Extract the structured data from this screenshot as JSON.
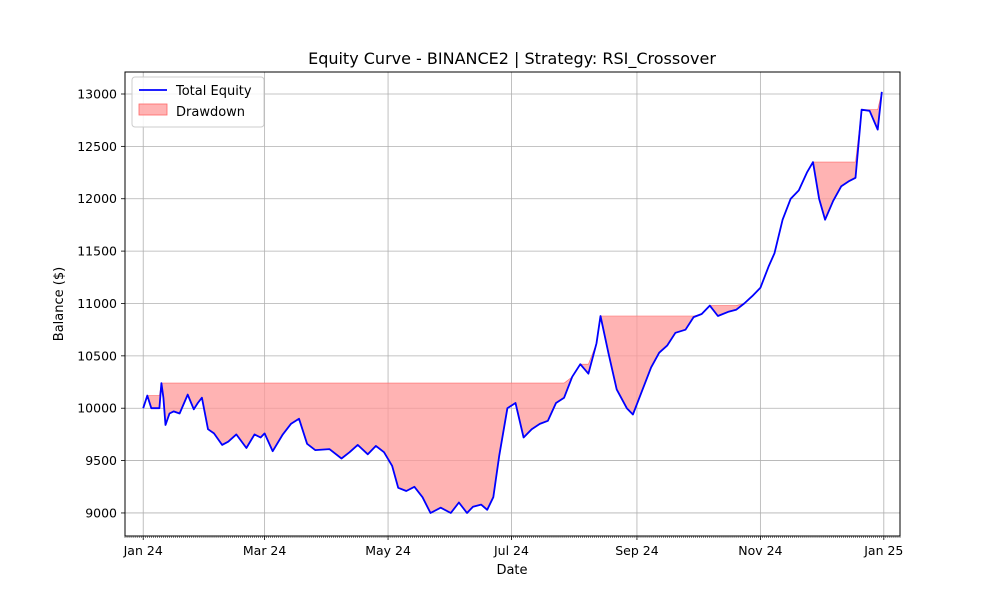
{
  "chart_data": {
    "type": "line",
    "title": "Equity Curve - BINANCE2 | Strategy: RSI_Crossover",
    "xlabel": "Date",
    "ylabel": "Balance ($)",
    "grid": true,
    "legend": {
      "placement": "top-left"
    },
    "xlim": [
      "2023-12-23",
      "2025-01-09"
    ],
    "ylim": [
      8780,
      13210
    ],
    "x_ticks": [
      {
        "date": "2024-01-01",
        "label": "Jan 24"
      },
      {
        "date": "2024-03-01",
        "label": "Mar 24"
      },
      {
        "date": "2024-05-01",
        "label": "May 24"
      },
      {
        "date": "2024-07-01",
        "label": "Jul 24"
      },
      {
        "date": "2024-09-01",
        "label": "Sep 24"
      },
      {
        "date": "2024-11-01",
        "label": "Nov 24"
      },
      {
        "date": "2025-01-01",
        "label": "Jan 25"
      }
    ],
    "y_ticks": [
      9000,
      9500,
      10000,
      10500,
      11000,
      11500,
      12000,
      12500,
      13000
    ],
    "colors": {
      "equity": "#0000ff",
      "drawdown_fill": "#ff9999",
      "drawdown_edge": "#ff6666",
      "grid": "#b0b0b0"
    },
    "series": [
      {
        "name": "Total Equity",
        "x": [
          "2024-01-01",
          "2024-01-03",
          "2024-01-05",
          "2024-01-09",
          "2024-01-10",
          "2024-01-11",
          "2024-01-12",
          "2024-01-14",
          "2024-01-16",
          "2024-01-19",
          "2024-01-23",
          "2024-01-26",
          "2024-01-28",
          "2024-01-30",
          "2024-02-02",
          "2024-02-05",
          "2024-02-09",
          "2024-02-12",
          "2024-02-16",
          "2024-02-21",
          "2024-02-25",
          "2024-02-28",
          "2024-03-01",
          "2024-03-05",
          "2024-03-10",
          "2024-03-14",
          "2024-03-18",
          "2024-03-22",
          "2024-03-26",
          "2024-04-02",
          "2024-04-08",
          "2024-04-12",
          "2024-04-16",
          "2024-04-21",
          "2024-04-25",
          "2024-04-29",
          "2024-05-03",
          "2024-05-06",
          "2024-05-10",
          "2024-05-14",
          "2024-05-18",
          "2024-05-22",
          "2024-05-27",
          "2024-06-01",
          "2024-06-05",
          "2024-06-09",
          "2024-06-12",
          "2024-06-16",
          "2024-06-19",
          "2024-06-22",
          "2024-06-25",
          "2024-06-29",
          "2024-07-03",
          "2024-07-07",
          "2024-07-11",
          "2024-07-15",
          "2024-07-19",
          "2024-07-23",
          "2024-07-27",
          "2024-07-31",
          "2024-08-04",
          "2024-08-08",
          "2024-08-12",
          "2024-08-14",
          "2024-08-18",
          "2024-08-22",
          "2024-08-27",
          "2024-08-30",
          "2024-09-03",
          "2024-09-08",
          "2024-09-12",
          "2024-09-16",
          "2024-09-20",
          "2024-09-25",
          "2024-09-29",
          "2024-10-03",
          "2024-10-07",
          "2024-10-11",
          "2024-10-16",
          "2024-10-20",
          "2024-10-24",
          "2024-10-28",
          "2024-11-01",
          "2024-11-05",
          "2024-11-08",
          "2024-11-12",
          "2024-11-16",
          "2024-11-20",
          "2024-11-24",
          "2024-11-27",
          "2024-11-30",
          "2024-12-03",
          "2024-12-07",
          "2024-12-11",
          "2024-12-15",
          "2024-12-18",
          "2024-12-21",
          "2024-12-25",
          "2024-12-29",
          "2024-12-31"
        ],
        "values": [
          10000,
          10120,
          10000,
          10000,
          10240,
          10100,
          9840,
          9950,
          9970,
          9950,
          10130,
          9990,
          10050,
          10100,
          9800,
          9760,
          9650,
          9680,
          9750,
          9620,
          9750,
          9720,
          9760,
          9590,
          9750,
          9850,
          9900,
          9660,
          9600,
          9610,
          9520,
          9580,
          9650,
          9560,
          9640,
          9580,
          9450,
          9240,
          9210,
          9250,
          9150,
          9000,
          9050,
          9000,
          9100,
          9000,
          9060,
          9080,
          9030,
          9150,
          9550,
          10000,
          10050,
          9720,
          9800,
          9850,
          9880,
          10050,
          10100,
          10300,
          10420,
          10330,
          10620,
          10880,
          10520,
          10180,
          10000,
          9940,
          10140,
          10390,
          10530,
          10600,
          10720,
          10750,
          10870,
          10900,
          10980,
          10880,
          10920,
          10940,
          11000,
          11070,
          11150,
          11350,
          11480,
          11800,
          12000,
          12080,
          12250,
          12350,
          12000,
          11800,
          11980,
          12120,
          12170,
          12200,
          12850,
          12840,
          12660,
          13020
        ]
      },
      {
        "name": "Drawdown",
        "type": "area",
        "x": [
          "2024-01-01",
          "2024-01-03",
          "2024-01-05",
          "2024-01-09",
          "2024-01-10",
          "2024-01-11",
          "2024-01-12",
          "2024-01-14",
          "2024-01-16",
          "2024-01-19",
          "2024-01-23",
          "2024-01-26",
          "2024-01-28",
          "2024-01-30",
          "2024-02-02",
          "2024-02-05",
          "2024-02-09",
          "2024-02-12",
          "2024-02-16",
          "2024-02-21",
          "2024-02-25",
          "2024-02-28",
          "2024-03-01",
          "2024-03-05",
          "2024-03-10",
          "2024-03-14",
          "2024-03-18",
          "2024-03-22",
          "2024-03-26",
          "2024-04-02",
          "2024-04-08",
          "2024-04-12",
          "2024-04-16",
          "2024-04-21",
          "2024-04-25",
          "2024-04-29",
          "2024-05-03",
          "2024-05-06",
          "2024-05-10",
          "2024-05-14",
          "2024-05-18",
          "2024-05-22",
          "2024-05-27",
          "2024-06-01",
          "2024-06-05",
          "2024-06-09",
          "2024-06-12",
          "2024-06-16",
          "2024-06-19",
          "2024-06-22",
          "2024-06-25",
          "2024-06-29",
          "2024-07-03",
          "2024-07-07",
          "2024-07-11",
          "2024-07-15",
          "2024-07-19",
          "2024-07-23",
          "2024-07-27",
          "2024-07-31",
          "2024-08-04",
          "2024-08-08",
          "2024-08-12",
          "2024-08-14",
          "2024-08-18",
          "2024-08-22",
          "2024-08-27",
          "2024-08-30",
          "2024-09-03",
          "2024-09-08",
          "2024-09-12",
          "2024-09-16",
          "2024-09-20",
          "2024-09-25",
          "2024-09-29",
          "2024-10-03",
          "2024-10-07",
          "2024-10-11",
          "2024-10-16",
          "2024-10-20",
          "2024-10-24",
          "2024-10-28",
          "2024-11-01",
          "2024-11-05",
          "2024-11-08",
          "2024-11-12",
          "2024-11-16",
          "2024-11-20",
          "2024-11-24",
          "2024-11-27",
          "2024-11-30",
          "2024-12-03",
          "2024-12-07",
          "2024-12-11",
          "2024-12-15",
          "2024-12-18",
          "2024-12-21",
          "2024-12-25",
          "2024-12-29",
          "2024-12-31"
        ],
        "upper": [
          10000,
          10120,
          10120,
          10120,
          10240,
          10240,
          10240,
          10240,
          10240,
          10240,
          10240,
          10240,
          10240,
          10240,
          10240,
          10240,
          10240,
          10240,
          10240,
          10240,
          10240,
          10240,
          10240,
          10240,
          10240,
          10240,
          10240,
          10240,
          10240,
          10240,
          10240,
          10240,
          10240,
          10240,
          10240,
          10240,
          10240,
          10240,
          10240,
          10240,
          10240,
          10240,
          10240,
          10240,
          10240,
          10240,
          10240,
          10240,
          10240,
          10240,
          10240,
          10240,
          10240,
          10240,
          10240,
          10240,
          10240,
          10240,
          10240,
          10300,
          10420,
          10420,
          10620,
          10880,
          10880,
          10880,
          10880,
          10880,
          10880,
          10880,
          10880,
          10880,
          10880,
          10880,
          10880,
          10900,
          10980,
          10980,
          10980,
          10980,
          11000,
          11070,
          11150,
          11350,
          11480,
          11800,
          12000,
          12080,
          12250,
          12350,
          12350,
          12350,
          12350,
          12350,
          12350,
          12350,
          12850,
          12850,
          12850,
          13020
        ],
        "lower": [
          10000,
          10120,
          10000,
          10000,
          10240,
          10100,
          9840,
          9950,
          9970,
          9950,
          10130,
          9990,
          10050,
          10100,
          9800,
          9760,
          9650,
          9680,
          9750,
          9620,
          9750,
          9720,
          9760,
          9590,
          9750,
          9850,
          9900,
          9660,
          9600,
          9610,
          9520,
          9580,
          9650,
          9560,
          9640,
          9580,
          9450,
          9240,
          9210,
          9250,
          9150,
          9000,
          9050,
          9000,
          9100,
          9000,
          9060,
          9080,
          9030,
          9150,
          9550,
          10000,
          10050,
          9720,
          9800,
          9850,
          9880,
          10050,
          10100,
          10300,
          10420,
          10330,
          10620,
          10880,
          10520,
          10180,
          10000,
          9940,
          10140,
          10390,
          10530,
          10600,
          10720,
          10750,
          10870,
          10900,
          10980,
          10880,
          10920,
          10940,
          11000,
          11070,
          11150,
          11350,
          11480,
          11800,
          12000,
          12080,
          12250,
          12350,
          12000,
          11800,
          11980,
          12120,
          12170,
          12200,
          12850,
          12840,
          12660,
          13020
        ]
      }
    ]
  }
}
